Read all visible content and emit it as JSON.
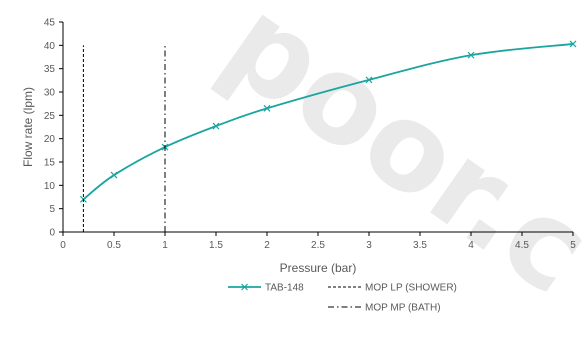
{
  "chart_data": {
    "type": "line",
    "title": "",
    "xlabel": "Pressure (bar)",
    "ylabel": "Flow rate (lpm)",
    "xlim": [
      0,
      5
    ],
    "ylim": [
      0,
      45
    ],
    "x_ticks": [
      0,
      0.5,
      1,
      1.5,
      2,
      2.5,
      3,
      3.5,
      4,
      4.5,
      5
    ],
    "x_tick_labels": [
      "0",
      "0.5",
      "1",
      "1.5",
      "2",
      "2.5",
      "3",
      "3.5",
      "4",
      "4.5",
      "5"
    ],
    "y_ticks": [
      0,
      5,
      10,
      15,
      20,
      25,
      30,
      35,
      40,
      45
    ],
    "y_tick_labels": [
      "0",
      "5",
      "10",
      "15",
      "20",
      "25",
      "30",
      "35",
      "40",
      "45"
    ],
    "grid": false,
    "legend_position": "bottom",
    "series": [
      {
        "name": "TAB-148",
        "color": "#1aa5a0",
        "marker": "x",
        "smooth": true,
        "x": [
          0.2,
          0.5,
          1,
          1.5,
          2,
          3,
          4,
          5
        ],
        "y": [
          7.0,
          12.2,
          18.2,
          22.7,
          26.5,
          32.6,
          37.9,
          40.3
        ]
      },
      {
        "name": "MOP  LP (SHOWER)",
        "color": "#000000",
        "style": "dashed",
        "x": [
          0.2,
          0.2
        ],
        "y": [
          0,
          40
        ]
      },
      {
        "name": "MOP  MP (BATH)",
        "color": "#000000",
        "style": "dashdot",
        "x": [
          1,
          1
        ],
        "y": [
          0,
          40
        ]
      }
    ]
  }
}
